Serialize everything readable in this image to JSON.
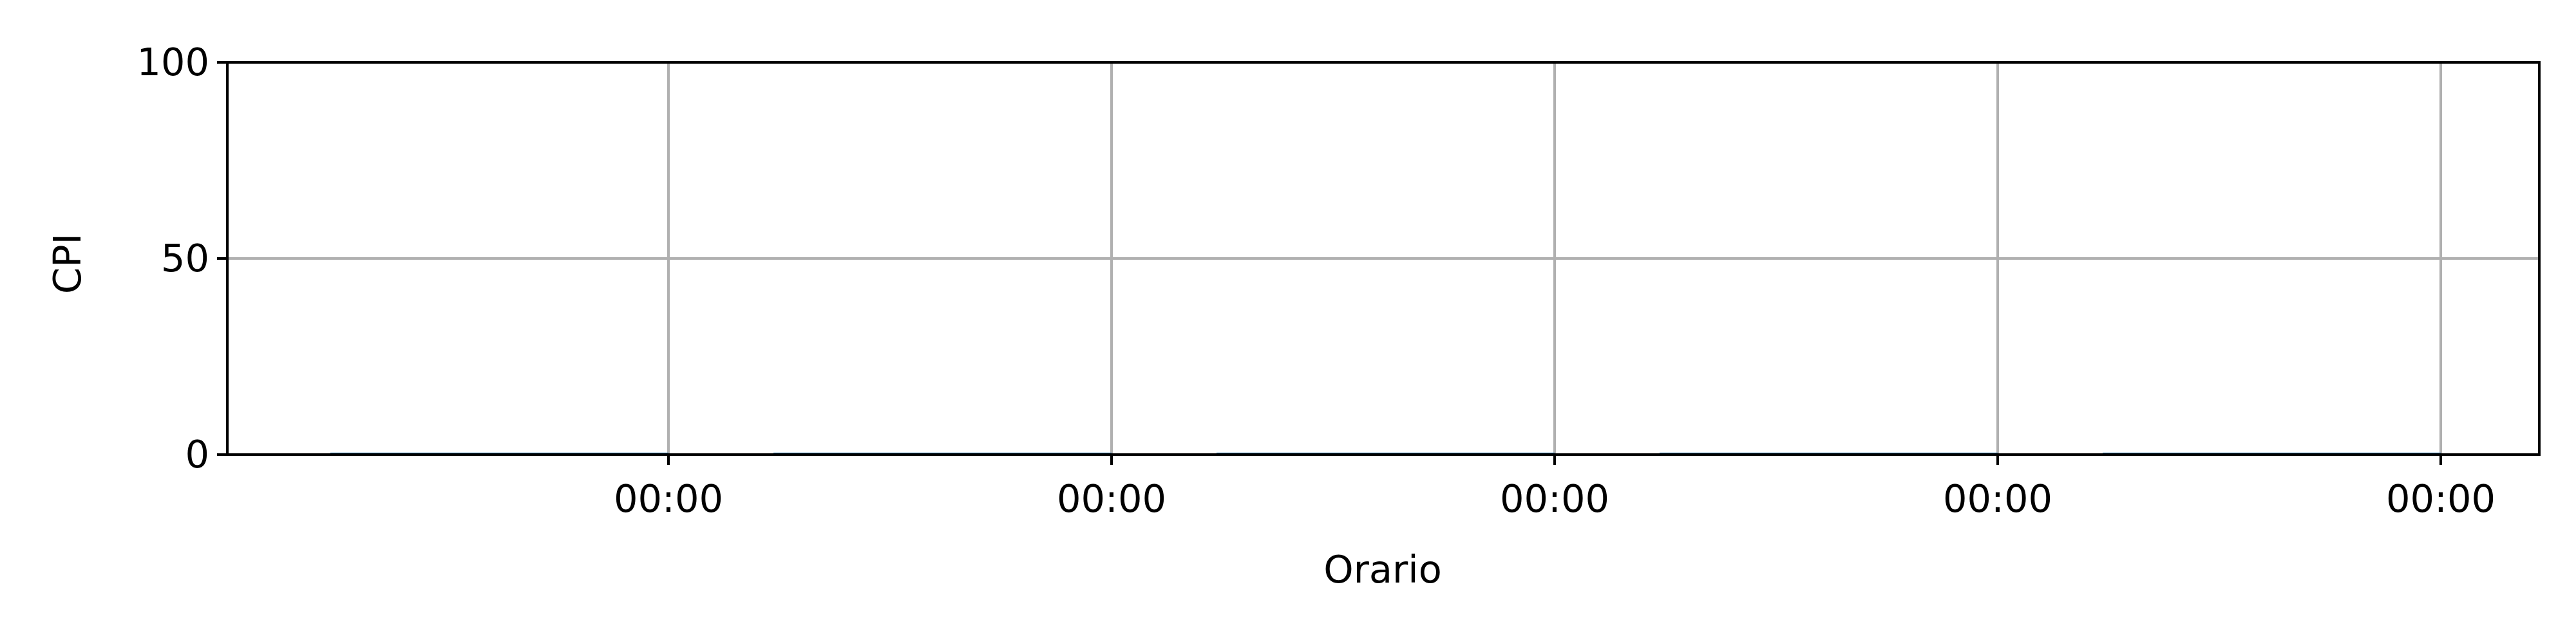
{
  "chart_data": {
    "type": "bar",
    "title": "",
    "xlabel": "Orario",
    "ylabel": "CPI",
    "ylim": [
      0,
      100
    ],
    "yticks": [
      0,
      50,
      100
    ],
    "xtick_labels": [
      "00:00",
      "00:00",
      "00:00",
      "00:00",
      "00:00"
    ],
    "grid": true,
    "legend": "none",
    "series": [
      {
        "values": [
          0.5,
          0.5,
          0.5,
          0.5,
          0.5
        ],
        "color": "#1f77b4"
      }
    ],
    "axis_color": "#000000",
    "grid_color": "#b0b0b0"
  }
}
